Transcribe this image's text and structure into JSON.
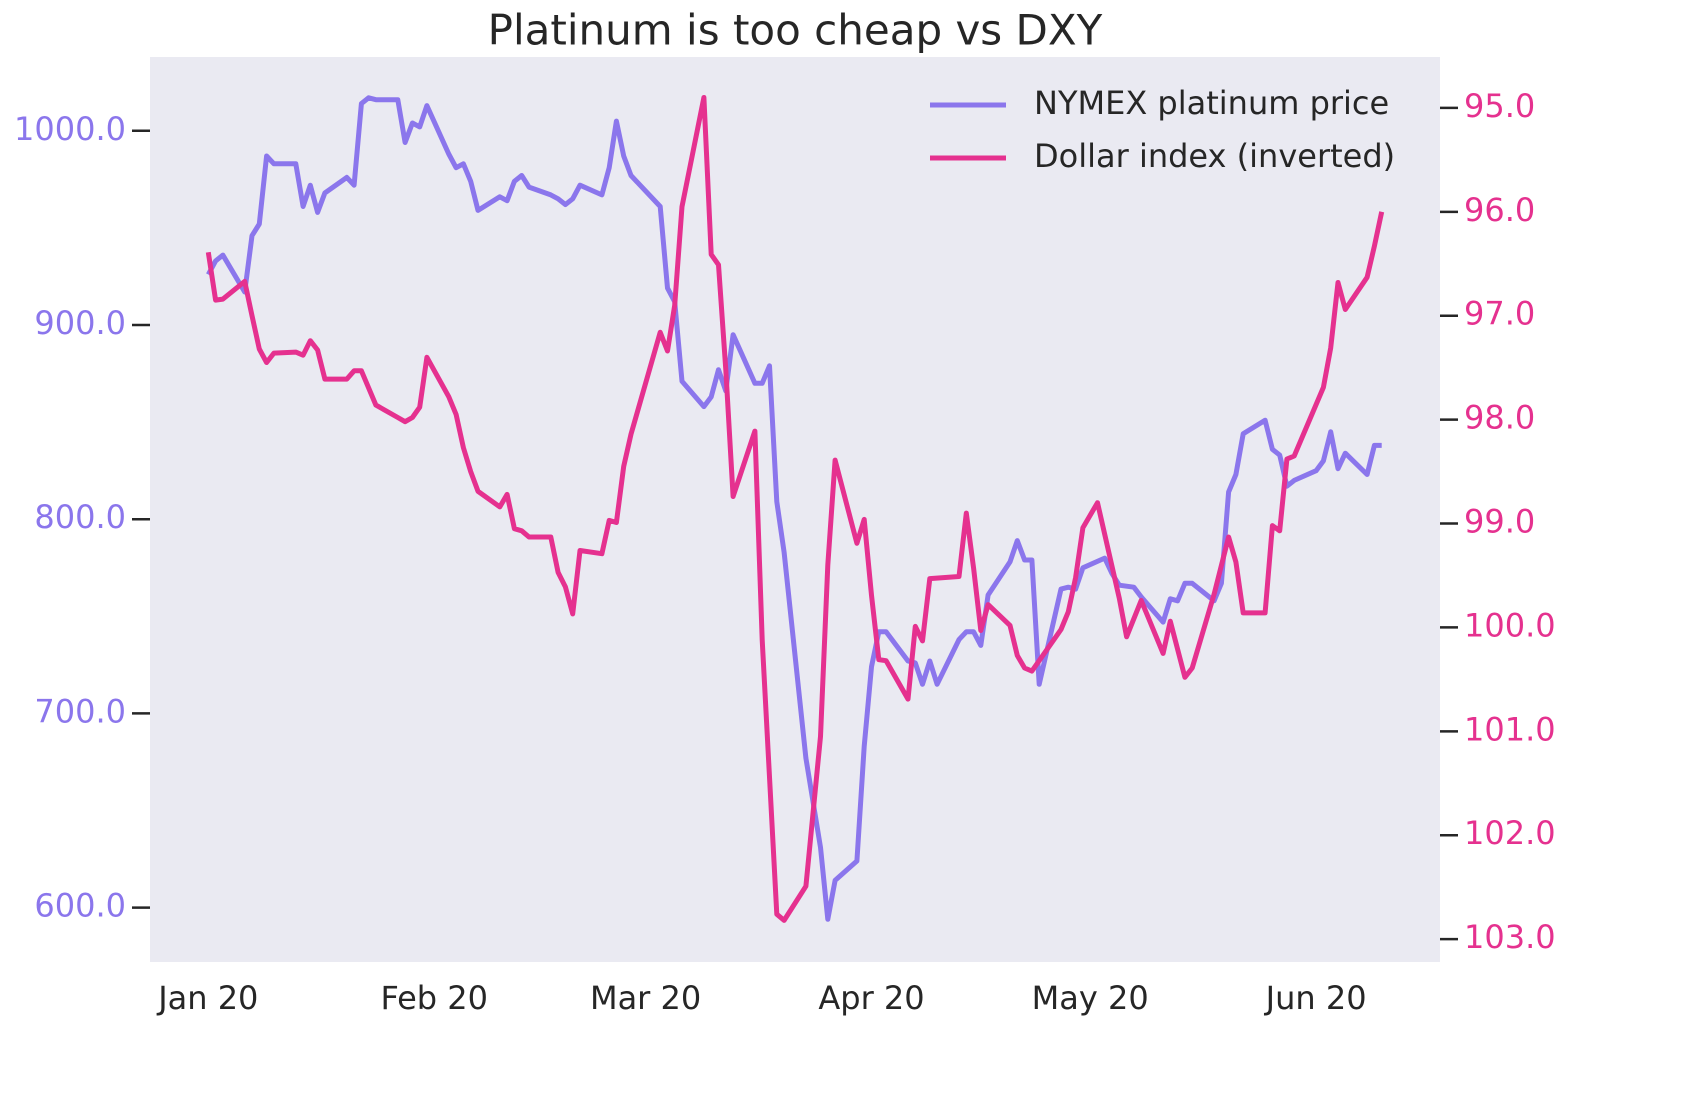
{
  "chart_data": {
    "type": "line",
    "title": "Platinum is too cheap vs DXY",
    "xlim": [
      "2019-12-24",
      "2020-06-18"
    ],
    "xticks": [
      {
        "value": "2020-01-01",
        "label": "Jan 20"
      },
      {
        "value": "2020-02-01",
        "label": "Feb 20"
      },
      {
        "value": "2020-03-01",
        "label": "Mar 20"
      },
      {
        "value": "2020-04-01",
        "label": "Apr 20"
      },
      {
        "value": "2020-05-01",
        "label": "May 20"
      },
      {
        "value": "2020-06-01",
        "label": "Jun 20"
      }
    ],
    "ylim": [
      572,
      1038
    ],
    "yticks": [
      {
        "value": 600,
        "label": "600.0"
      },
      {
        "value": 700,
        "label": "700.0"
      },
      {
        "value": 800,
        "label": "800.0"
      },
      {
        "value": 900,
        "label": "900.0"
      },
      {
        "value": 1000,
        "label": "1000.0"
      }
    ],
    "y2lim": [
      94.51,
      103.22
    ],
    "y2_inverted": true,
    "y2ticks": [
      {
        "value": 95,
        "label": "95.0"
      },
      {
        "value": 96,
        "label": "96.0"
      },
      {
        "value": 97,
        "label": "97.0"
      },
      {
        "value": 98,
        "label": "98.0"
      },
      {
        "value": 99,
        "label": "99.0"
      },
      {
        "value": 100,
        "label": "100.0"
      },
      {
        "value": 101,
        "label": "101.0"
      },
      {
        "value": 102,
        "label": "102.0"
      },
      {
        "value": 103,
        "label": "103.0"
      }
    ],
    "grid": false,
    "legend": "upper right",
    "series": [
      {
        "name": "NYMEX platinum price",
        "color": "#8b76ec",
        "axis": "y",
        "x": [
          "2020-01-01",
          "2020-01-02",
          "2020-01-03",
          "2020-01-06",
          "2020-01-07",
          "2020-01-08",
          "2020-01-09",
          "2020-01-10",
          "2020-01-13",
          "2020-01-14",
          "2020-01-15",
          "2020-01-16",
          "2020-01-17",
          "2020-01-20",
          "2020-01-21",
          "2020-01-22",
          "2020-01-23",
          "2020-01-24",
          "2020-01-27",
          "2020-01-28",
          "2020-01-29",
          "2020-01-30",
          "2020-01-31",
          "2020-02-03",
          "2020-02-04",
          "2020-02-05",
          "2020-02-06",
          "2020-02-07",
          "2020-02-10",
          "2020-02-11",
          "2020-02-12",
          "2020-02-13",
          "2020-02-14",
          "2020-02-17",
          "2020-02-18",
          "2020-02-19",
          "2020-02-20",
          "2020-02-21",
          "2020-02-24",
          "2020-02-25",
          "2020-02-26",
          "2020-02-27",
          "2020-02-28",
          "2020-03-03",
          "2020-03-04",
          "2020-03-05",
          "2020-03-06",
          "2020-03-09",
          "2020-03-10",
          "2020-03-11",
          "2020-03-12",
          "2020-03-13",
          "2020-03-16",
          "2020-03-17",
          "2020-03-18",
          "2020-03-19",
          "2020-03-20",
          "2020-03-23",
          "2020-03-25",
          "2020-03-26",
          "2020-03-27",
          "2020-03-30",
          "2020-03-31",
          "2020-04-01",
          "2020-04-02",
          "2020-04-03",
          "2020-04-06",
          "2020-04-07",
          "2020-04-08",
          "2020-04-09",
          "2020-04-10",
          "2020-04-13",
          "2020-04-14",
          "2020-04-15",
          "2020-04-16",
          "2020-04-17",
          "2020-04-20",
          "2020-04-21",
          "2020-04-22",
          "2020-04-23",
          "2020-04-24",
          "2020-04-27",
          "2020-04-28",
          "2020-04-29",
          "2020-04-30",
          "2020-05-03",
          "2020-05-04",
          "2020-05-05",
          "2020-05-07",
          "2020-05-08",
          "2020-05-11",
          "2020-05-12",
          "2020-05-13",
          "2020-05-14",
          "2020-05-15",
          "2020-05-18",
          "2020-05-19",
          "2020-05-20",
          "2020-05-21",
          "2020-05-22",
          "2020-05-25",
          "2020-05-26",
          "2020-05-27",
          "2020-05-28",
          "2020-05-29",
          "2020-06-01",
          "2020-06-02",
          "2020-06-03",
          "2020-06-04",
          "2020-06-05",
          "2020-06-08",
          "2020-06-09",
          "2020-06-10"
        ],
        "values": [
          926,
          933,
          936,
          917,
          946,
          952,
          987,
          983,
          983,
          961,
          972,
          958,
          968,
          976,
          972,
          1014,
          1017,
          1016,
          1016,
          994,
          1004,
          1002,
          1013,
          988,
          981,
          983,
          974,
          959,
          966,
          964,
          974,
          977,
          971,
          967,
          965,
          962,
          965,
          972,
          967,
          981,
          1005,
          987,
          977,
          961,
          919,
          912,
          871,
          858,
          863,
          877,
          866,
          895,
          870,
          870,
          879,
          809,
          783,
          677,
          631,
          594,
          614,
          624,
          683,
          724,
          742,
          742,
          727,
          726,
          715,
          727,
          715,
          738,
          742,
          742,
          735,
          761,
          778,
          789,
          779,
          779,
          715,
          764,
          765,
          764,
          775,
          780,
          772,
          766,
          765,
          760,
          747,
          759,
          758,
          767,
          767,
          758,
          767,
          814,
          823,
          844,
          851,
          836,
          833,
          817,
          820,
          825,
          830,
          845,
          826,
          834,
          823,
          838,
          838
        ]
      },
      {
        "name": "Dollar index (inverted)",
        "color": "#e5318f",
        "axis": "y2",
        "x": [
          "2020-01-01",
          "2020-01-02",
          "2020-01-03",
          "2020-01-06",
          "2020-01-07",
          "2020-01-08",
          "2020-01-09",
          "2020-01-10",
          "2020-01-13",
          "2020-01-14",
          "2020-01-15",
          "2020-01-16",
          "2020-01-17",
          "2020-01-20",
          "2020-01-21",
          "2020-01-22",
          "2020-01-24",
          "2020-01-27",
          "2020-01-28",
          "2020-01-29",
          "2020-01-30",
          "2020-01-31",
          "2020-02-03",
          "2020-02-04",
          "2020-02-05",
          "2020-02-06",
          "2020-02-07",
          "2020-02-10",
          "2020-02-11",
          "2020-02-12",
          "2020-02-13",
          "2020-02-14",
          "2020-02-17",
          "2020-02-18",
          "2020-02-19",
          "2020-02-20",
          "2020-02-21",
          "2020-02-24",
          "2020-02-25",
          "2020-02-26",
          "2020-02-27",
          "2020-02-28",
          "2020-03-03",
          "2020-03-04",
          "2020-03-05",
          "2020-03-06",
          "2020-03-09",
          "2020-03-10",
          "2020-03-11",
          "2020-03-12",
          "2020-03-13",
          "2020-03-16",
          "2020-03-17",
          "2020-03-19",
          "2020-03-20",
          "2020-03-23",
          "2020-03-25",
          "2020-03-26",
          "2020-03-27",
          "2020-03-30",
          "2020-03-31",
          "2020-04-01",
          "2020-04-02",
          "2020-04-03",
          "2020-04-06",
          "2020-04-07",
          "2020-04-08",
          "2020-04-09",
          "2020-04-13",
          "2020-04-14",
          "2020-04-15",
          "2020-04-16",
          "2020-04-17",
          "2020-04-20",
          "2020-04-21",
          "2020-04-22",
          "2020-04-23",
          "2020-04-27",
          "2020-04-28",
          "2020-04-29",
          "2020-04-30",
          "2020-05-02",
          "2020-05-05",
          "2020-05-06",
          "2020-05-08",
          "2020-05-11",
          "2020-05-12",
          "2020-05-14",
          "2020-05-15",
          "2020-05-18",
          "2020-05-20",
          "2020-05-21",
          "2020-05-22",
          "2020-05-25",
          "2020-05-26",
          "2020-05-27",
          "2020-05-28",
          "2020-05-29",
          "2020-06-02",
          "2020-06-03",
          "2020-06-04",
          "2020-06-05",
          "2020-06-08",
          "2020-06-09",
          "2020-06-10"
        ],
        "values": [
          96.39,
          96.85,
          96.84,
          96.67,
          97.0,
          97.32,
          97.45,
          97.36,
          97.35,
          97.38,
          97.24,
          97.33,
          97.61,
          97.61,
          97.53,
          97.53,
          97.86,
          97.98,
          98.02,
          97.98,
          97.88,
          97.4,
          97.78,
          97.95,
          98.27,
          98.5,
          98.69,
          98.84,
          98.72,
          99.05,
          99.07,
          99.13,
          99.13,
          99.47,
          99.61,
          99.87,
          99.26,
          99.29,
          98.97,
          98.99,
          98.45,
          98.14,
          97.16,
          97.34,
          96.9,
          95.95,
          94.9,
          96.41,
          96.51,
          97.52,
          98.74,
          98.11,
          100.12,
          102.76,
          102.82,
          102.49,
          101.05,
          99.4,
          98.39,
          99.19,
          98.96,
          99.69,
          100.31,
          100.32,
          100.69,
          99.99,
          100.13,
          99.53,
          99.51,
          98.9,
          99.43,
          100.03,
          99.78,
          99.98,
          100.27,
          100.39,
          100.42,
          100.02,
          99.85,
          99.52,
          99.04,
          98.8,
          99.72,
          100.09,
          99.74,
          100.25,
          99.94,
          100.48,
          100.39,
          99.68,
          99.13,
          99.37,
          99.86,
          99.86,
          99.02,
          99.07,
          98.38,
          98.35,
          97.69,
          97.31,
          96.68,
          96.94,
          96.63,
          96.33,
          96.0
        ]
      }
    ]
  }
}
